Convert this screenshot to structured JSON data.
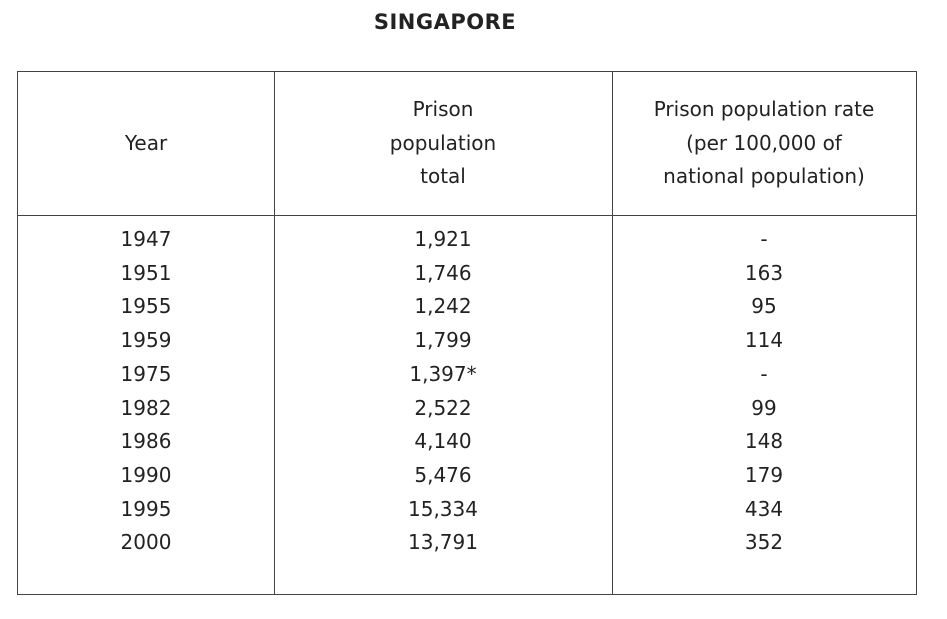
{
  "title": "SINGAPORE",
  "table": {
    "header": [
      [
        "Year"
      ],
      [
        "Prison",
        "population",
        "total"
      ],
      [
        "Prison population rate",
        "(per 100,000 of",
        "national population)"
      ]
    ],
    "rows": [
      [
        "1947",
        "1,921",
        "-"
      ],
      [
        "1951",
        "1,746",
        "163"
      ],
      [
        "1955",
        "1,242",
        "95"
      ],
      [
        "1959",
        "1,799",
        "114"
      ],
      [
        "1975",
        "1,397*",
        "-"
      ],
      [
        "1982",
        "2,522",
        "99"
      ],
      [
        "1986",
        "4,140",
        "148"
      ],
      [
        "1990",
        "5,476",
        "179"
      ],
      [
        "1995",
        "15,334",
        "434"
      ],
      [
        "2000",
        "13,791",
        "352"
      ]
    ]
  }
}
